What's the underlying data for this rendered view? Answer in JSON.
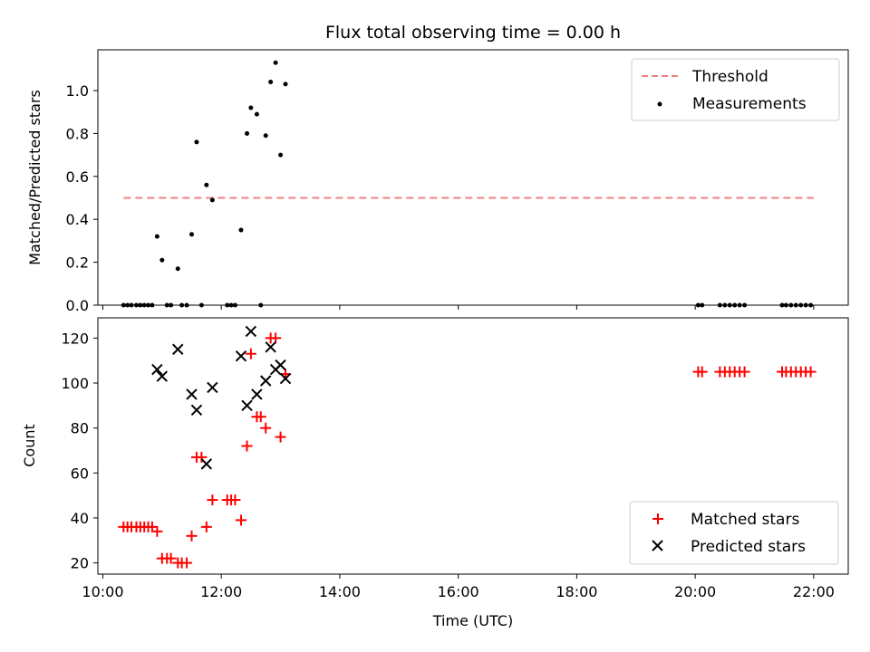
{
  "figure": {
    "title": "Flux total observing time = 0.00 h"
  },
  "chart_data": [
    {
      "type": "scatter",
      "title": "Flux total observing time = 0.00 h",
      "xlabel": "",
      "ylabel": "Matched/Predicted stars",
      "xlim": [
        "09:55",
        "22:35"
      ],
      "ylim": [
        0,
        1.19
      ],
      "yticks": [
        0.0,
        0.2,
        0.4,
        0.6,
        0.8,
        1.0
      ],
      "ytick_labels": [
        "0.0",
        "0.2",
        "0.4",
        "0.6",
        "0.8",
        "1.0"
      ],
      "xticks": [
        "10:00",
        "12:00",
        "14:00",
        "16:00",
        "18:00",
        "20:00",
        "22:00"
      ],
      "xtick_labels_visible": false,
      "grid": false,
      "legend": {
        "placement": "top-right",
        "entries": [
          "Threshold",
          "Measurements"
        ]
      },
      "series": [
        {
          "name": "Threshold",
          "kind": "dashed-line",
          "color": "#f08080",
          "points": [
            [
              "10:21",
              0.5
            ],
            [
              "22:00",
              0.5
            ]
          ]
        },
        {
          "name": "Measurements",
          "kind": "dot",
          "color": "#000000",
          "points": [
            [
              "10:21",
              0
            ],
            [
              "10:25",
              0
            ],
            [
              "10:29",
              0
            ],
            [
              "10:34",
              0
            ],
            [
              "10:38",
              0
            ],
            [
              "10:42",
              0
            ],
            [
              "10:46",
              0
            ],
            [
              "10:50",
              0
            ],
            [
              "10:55",
              0.32
            ],
            [
              "11:00",
              0.21
            ],
            [
              "11:05",
              0
            ],
            [
              "11:09",
              0
            ],
            [
              "11:16",
              0.17
            ],
            [
              "11:20",
              0
            ],
            [
              "11:25",
              0
            ],
            [
              "11:30",
              0.33
            ],
            [
              "11:35",
              0.76
            ],
            [
              "11:40",
              0
            ],
            [
              "11:45",
              0.56
            ],
            [
              "11:51",
              0.49
            ],
            [
              "12:06",
              0
            ],
            [
              "12:10",
              0
            ],
            [
              "12:14",
              0
            ],
            [
              "12:20",
              0.35
            ],
            [
              "12:26",
              0.8
            ],
            [
              "12:30",
              0.92
            ],
            [
              "12:36",
              0.89
            ],
            [
              "12:40",
              0
            ],
            [
              "12:45",
              0.79
            ],
            [
              "12:50",
              1.04
            ],
            [
              "12:55",
              1.13
            ],
            [
              "13:00",
              0.7
            ],
            [
              "13:05",
              1.03
            ],
            [
              "20:03",
              0
            ],
            [
              "20:07",
              0
            ],
            [
              "20:25",
              0
            ],
            [
              "20:30",
              0
            ],
            [
              "20:35",
              0
            ],
            [
              "20:40",
              0
            ],
            [
              "20:45",
              0
            ],
            [
              "20:50",
              0
            ],
            [
              "21:28",
              0
            ],
            [
              "21:32",
              0
            ],
            [
              "21:37",
              0
            ],
            [
              "21:42",
              0
            ],
            [
              "21:47",
              0
            ],
            [
              "21:52",
              0
            ],
            [
              "21:57",
              0
            ]
          ]
        }
      ]
    },
    {
      "type": "scatter",
      "title": "",
      "xlabel": "Time (UTC)",
      "ylabel": "Count",
      "xlim": [
        "09:55",
        "22:35"
      ],
      "ylim": [
        15,
        129
      ],
      "yticks": [
        20,
        40,
        60,
        80,
        100,
        120
      ],
      "xticks": [
        "10:00",
        "12:00",
        "14:00",
        "16:00",
        "18:00",
        "20:00",
        "22:00"
      ],
      "xtick_labels": [
        "10:00",
        "12:00",
        "14:00",
        "16:00",
        "18:00",
        "20:00",
        "22:00"
      ],
      "grid": false,
      "legend": {
        "placement": "bottom-right",
        "entries": [
          "Matched stars",
          "Predicted stars"
        ]
      },
      "series": [
        {
          "name": "Matched stars",
          "marker": "plus",
          "color": "#ff0000",
          "points": [
            [
              "10:21",
              36
            ],
            [
              "10:25",
              36
            ],
            [
              "10:29",
              36
            ],
            [
              "10:34",
              36
            ],
            [
              "10:38",
              36
            ],
            [
              "10:42",
              36
            ],
            [
              "10:46",
              36
            ],
            [
              "10:50",
              36
            ],
            [
              "10:55",
              34
            ],
            [
              "11:00",
              22
            ],
            [
              "11:05",
              22
            ],
            [
              "11:09",
              22
            ],
            [
              "11:16",
              20
            ],
            [
              "11:20",
              20
            ],
            [
              "11:25",
              20
            ],
            [
              "11:30",
              32
            ],
            [
              "11:35",
              67
            ],
            [
              "11:40",
              67
            ],
            [
              "11:45",
              36
            ],
            [
              "11:51",
              48
            ],
            [
              "12:06",
              48
            ],
            [
              "12:10",
              48
            ],
            [
              "12:14",
              48
            ],
            [
              "12:20",
              39
            ],
            [
              "12:26",
              72
            ],
            [
              "12:30",
              113
            ],
            [
              "12:36",
              85
            ],
            [
              "12:40",
              85
            ],
            [
              "12:45",
              80
            ],
            [
              "12:50",
              120
            ],
            [
              "12:55",
              120
            ],
            [
              "13:00",
              76
            ],
            [
              "13:05",
              104
            ],
            [
              "20:03",
              105
            ],
            [
              "20:07",
              105
            ],
            [
              "20:25",
              105
            ],
            [
              "20:30",
              105
            ],
            [
              "20:35",
              105
            ],
            [
              "20:40",
              105
            ],
            [
              "20:45",
              105
            ],
            [
              "20:50",
              105
            ],
            [
              "21:28",
              105
            ],
            [
              "21:32",
              105
            ],
            [
              "21:37",
              105
            ],
            [
              "21:42",
              105
            ],
            [
              "21:47",
              105
            ],
            [
              "21:52",
              105
            ],
            [
              "21:57",
              105
            ]
          ]
        },
        {
          "name": "Predicted stars",
          "marker": "x",
          "color": "#000000",
          "points": [
            [
              "10:55",
              106
            ],
            [
              "11:00",
              103
            ],
            [
              "11:16",
              115
            ],
            [
              "11:30",
              95
            ],
            [
              "11:35",
              88
            ],
            [
              "11:45",
              64
            ],
            [
              "11:51",
              98
            ],
            [
              "12:20",
              112
            ],
            [
              "12:26",
              90
            ],
            [
              "12:30",
              123
            ],
            [
              "12:36",
              95
            ],
            [
              "12:45",
              101
            ],
            [
              "12:50",
              116
            ],
            [
              "12:55",
              106
            ],
            [
              "13:00",
              108
            ],
            [
              "13:05",
              102
            ]
          ]
        }
      ]
    }
  ]
}
